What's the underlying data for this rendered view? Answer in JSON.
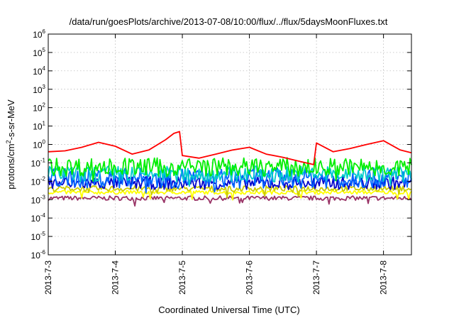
{
  "chart_data": {
    "type": "line",
    "title": "/data/run/goesPlots/archive/2013-07-08/10:00/flux/../flux/5daysMoonFluxes.txt",
    "xlabel": "Coordinated Universal Time (UTC)",
    "ylabel_parts": [
      "protons/cm",
      "2",
      "-s-sr-MeV"
    ],
    "y_scale": "log",
    "ylim": [
      1e-06,
      1000000.0
    ],
    "y_ticks": [
      {
        "base": "10",
        "exp": "-6",
        "value": 1e-06
      },
      {
        "base": "10",
        "exp": "-5",
        "value": 1e-05
      },
      {
        "base": "10",
        "exp": "-4",
        "value": 0.0001
      },
      {
        "base": "10",
        "exp": "-3",
        "value": 0.001
      },
      {
        "base": "10",
        "exp": "-2",
        "value": 0.01
      },
      {
        "base": "10",
        "exp": "-1",
        "value": 0.1
      },
      {
        "base": "10",
        "exp": "0",
        "value": 1
      },
      {
        "base": "10",
        "exp": "1",
        "value": 10.0
      },
      {
        "base": "10",
        "exp": "2",
        "value": 100.0
      },
      {
        "base": "10",
        "exp": "3",
        "value": 1000.0
      },
      {
        "base": "10",
        "exp": "4",
        "value": 10000.0
      },
      {
        "base": "10",
        "exp": "5",
        "value": 100000.0
      },
      {
        "base": "10",
        "exp": "6",
        "value": 1000000.0
      }
    ],
    "xlim": [
      "2013-07-03T00:00",
      "2013-07-08T10:00"
    ],
    "x_ticks": [
      "2013-7-3",
      "2013-7-4",
      "2013-7-5",
      "2013-7-6",
      "2013-7-7",
      "2013-7-8"
    ],
    "grid": true,
    "series": [
      {
        "color": "#ff0000",
        "values": [
          [
            "2013-07-03T00:00",
            0.4
          ],
          [
            "2013-07-03T06:00",
            0.45
          ],
          [
            "2013-07-03T12:00",
            0.7
          ],
          [
            "2013-07-03T18:00",
            1.3
          ],
          [
            "2013-07-04T00:00",
            0.8
          ],
          [
            "2013-07-04T06:00",
            0.3
          ],
          [
            "2013-07-04T12:00",
            0.5
          ],
          [
            "2013-07-04T18:00",
            1.8
          ],
          [
            "2013-07-04T21:00",
            4.0
          ],
          [
            "2013-07-04T23:00",
            5.0
          ],
          [
            "2013-07-05T00:00",
            0.25
          ],
          [
            "2013-07-05T06:00",
            0.18
          ],
          [
            "2013-07-05T12:00",
            0.3
          ],
          [
            "2013-07-05T18:00",
            0.5
          ],
          [
            "2013-07-06T00:00",
            0.7
          ],
          [
            "2013-07-06T06:00",
            0.3
          ],
          [
            "2013-07-06T12:00",
            0.2
          ],
          [
            "2013-07-06T18:00",
            0.12
          ],
          [
            "2013-07-06T23:00",
            0.08
          ],
          [
            "2013-07-07T00:00",
            1.2
          ],
          [
            "2013-07-07T06:00",
            0.4
          ],
          [
            "2013-07-07T12:00",
            0.6
          ],
          [
            "2013-07-07T18:00",
            1.0
          ],
          [
            "2013-07-08T00:00",
            1.6
          ],
          [
            "2013-07-08T06:00",
            0.5
          ],
          [
            "2013-07-08T10:00",
            0.35
          ]
        ]
      },
      {
        "color": "#00ee00",
        "base": 0.06,
        "noise": 0.5
      },
      {
        "color": "#00cccc",
        "base": 0.025,
        "noise": 0.45
      },
      {
        "color": "#0066ff",
        "base": 0.015,
        "noise": 0.55
      },
      {
        "color": "#0000cc",
        "base": 0.008,
        "noise": 0.35
      },
      {
        "color": "#cccc00",
        "base": 0.004,
        "noise": 0.15
      },
      {
        "color": "#ffff00",
        "base": 0.0025,
        "noise": 0.1
      },
      {
        "color": "#993366",
        "base": 0.0012,
        "noise": 0.12
      }
    ]
  }
}
